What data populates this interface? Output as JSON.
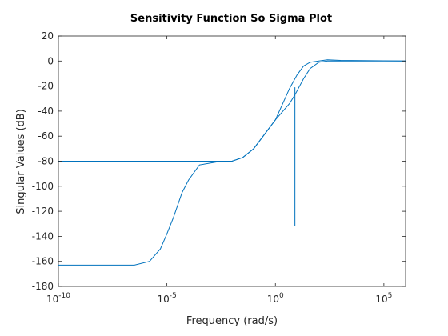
{
  "chart_data": {
    "type": "line",
    "title": "Sensitivity Function So Sigma Plot",
    "xlabel": "Frequency (rad/s)",
    "ylabel": "Singular Values (dB)",
    "xscale": "log",
    "xlim_exp": [
      -10,
      6
    ],
    "ylim": [
      -180,
      20
    ],
    "yticks": [
      20,
      0,
      -20,
      -40,
      -60,
      -80,
      -100,
      -120,
      -140,
      -160,
      -180
    ],
    "xticks": [
      {
        "exp": -10,
        "label": "10",
        "sup": "-10"
      },
      {
        "exp": -5,
        "label": "10",
        "sup": "-5"
      },
      {
        "exp": 0,
        "label": "10",
        "sup": "0"
      },
      {
        "exp": 5,
        "label": "10",
        "sup": "5"
      }
    ],
    "grid": false,
    "box": true,
    "line_color": "#0072bd",
    "series": [
      {
        "x_log10": [
          -10,
          -6.5,
          -5.8,
          -5.3,
          -5.0,
          -4.7,
          -4.3,
          -4.0,
          -3.5,
          -2.5,
          -2.0,
          -1.5,
          -1.0,
          0.0,
          0.65,
          0.9,
          1.3,
          1.6,
          2.0,
          2.4,
          3.0,
          6
        ],
        "y": [
          -163,
          -163,
          -160,
          -150,
          -138,
          -125,
          -105,
          -95,
          -83,
          -80,
          -80,
          -77,
          -70,
          -47,
          -34,
          -27,
          -14,
          -6,
          -1,
          0,
          0,
          0
        ]
      },
      {
        "x_log10": [
          -10,
          -2.5,
          -2.0,
          -1.5,
          -1.0,
          0.0,
          0.65,
          1.0,
          1.3,
          1.6,
          2.0,
          2.4,
          3.0,
          6
        ],
        "y": [
          -80,
          -80,
          -80,
          -77,
          -70,
          -47,
          -22,
          -11,
          -4,
          -1,
          0,
          1,
          0.5,
          0
        ]
      },
      {
        "x_log10": [
          0.9,
          0.9,
          0.9,
          0.9
        ],
        "y": [
          -21,
          -132,
          -21,
          -55
        ]
      }
    ]
  }
}
